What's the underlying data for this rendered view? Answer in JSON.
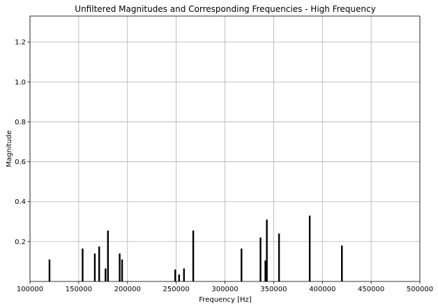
{
  "chart_data": {
    "type": "bar",
    "title": "Unfiltered Magnitudes and Corresponding Frequencies - High Frequency",
    "xlabel": "Frequency [Hz]",
    "ylabel": "Magnitude",
    "xlim": [
      100000,
      500000
    ],
    "ylim": [
      0,
      1.33
    ],
    "xticks": [
      100000,
      150000,
      200000,
      250000,
      300000,
      350000,
      400000,
      450000,
      500000
    ],
    "xtick_labels": [
      "100000",
      "150000",
      "200000",
      "250000",
      "300000",
      "350000",
      "400000",
      "450000",
      "500000"
    ],
    "yticks": [
      0.2,
      0.4,
      0.6,
      0.8,
      1.0,
      1.2
    ],
    "ytick_labels": [
      "0.2",
      "0.4",
      "0.6",
      "0.8",
      "1.0",
      "1.2"
    ],
    "grid": true,
    "series": [
      {
        "color": "#000000",
        "x": [
          120000,
          154000,
          166500,
          171000,
          177500,
          180000,
          192000,
          194500,
          249000,
          253000,
          258000,
          267500,
          317000,
          336500,
          341500,
          343000,
          355500,
          387000,
          420000
        ],
        "values": [
          0.11,
          0.165,
          0.14,
          0.175,
          0.065,
          0.255,
          0.14,
          0.11,
          0.06,
          0.035,
          0.065,
          0.255,
          0.165,
          0.22,
          0.105,
          0.31,
          0.24,
          0.33,
          0.18
        ]
      }
    ]
  }
}
